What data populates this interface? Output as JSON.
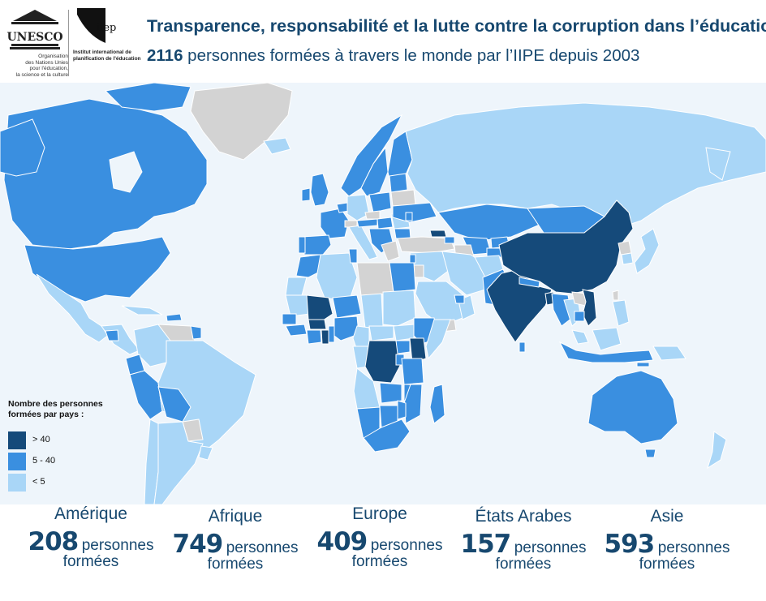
{
  "colors": {
    "high": "#154a7a",
    "mid": "#3a8fe0",
    "low": "#a9d6f7",
    "none": "#d3d3d3",
    "ocean": "#eef5fb",
    "text": "#17486f"
  },
  "header": {
    "unesco_logo_text": "UNESCO",
    "unesco_caption": "Organisation\ndes Nations Unies\npour l'éducation,\nla science et la culture",
    "iiep_logo_text": "iiep",
    "iiep_caption": "Institut international de\nplanification de l'éducation",
    "title": "Transparence, responsabilité et la lutte contre la corruption dans l’éducation",
    "subtitle_number": "2116",
    "subtitle_rest": " personnes formées à travers le monde par l’IIPE depuis 2003"
  },
  "legend": {
    "title": "Nombre des personnes\nformées par pays :",
    "items": [
      {
        "label": "> 40",
        "color": "#154a7a"
      },
      {
        "label": "5 - 40",
        "color": "#3a8fe0"
      },
      {
        "label": "< 5",
        "color": "#a9d6f7"
      }
    ]
  },
  "regions": [
    {
      "name": "Amérique",
      "count": "208",
      "unit": "personnes",
      "unit2": "formées"
    },
    {
      "name": "Afrique",
      "count": "749",
      "unit": "personnes",
      "unit2": "formées"
    },
    {
      "name": "Europe",
      "count": "409",
      "unit": "personnes",
      "unit2": "formées"
    },
    {
      "name": "États Arabes",
      "count": "157",
      "unit": "personnes",
      "unit2": "formées"
    },
    {
      "name": "Asie",
      "count": "593",
      "unit": "personnes",
      "unit2": "formées"
    }
  ]
}
